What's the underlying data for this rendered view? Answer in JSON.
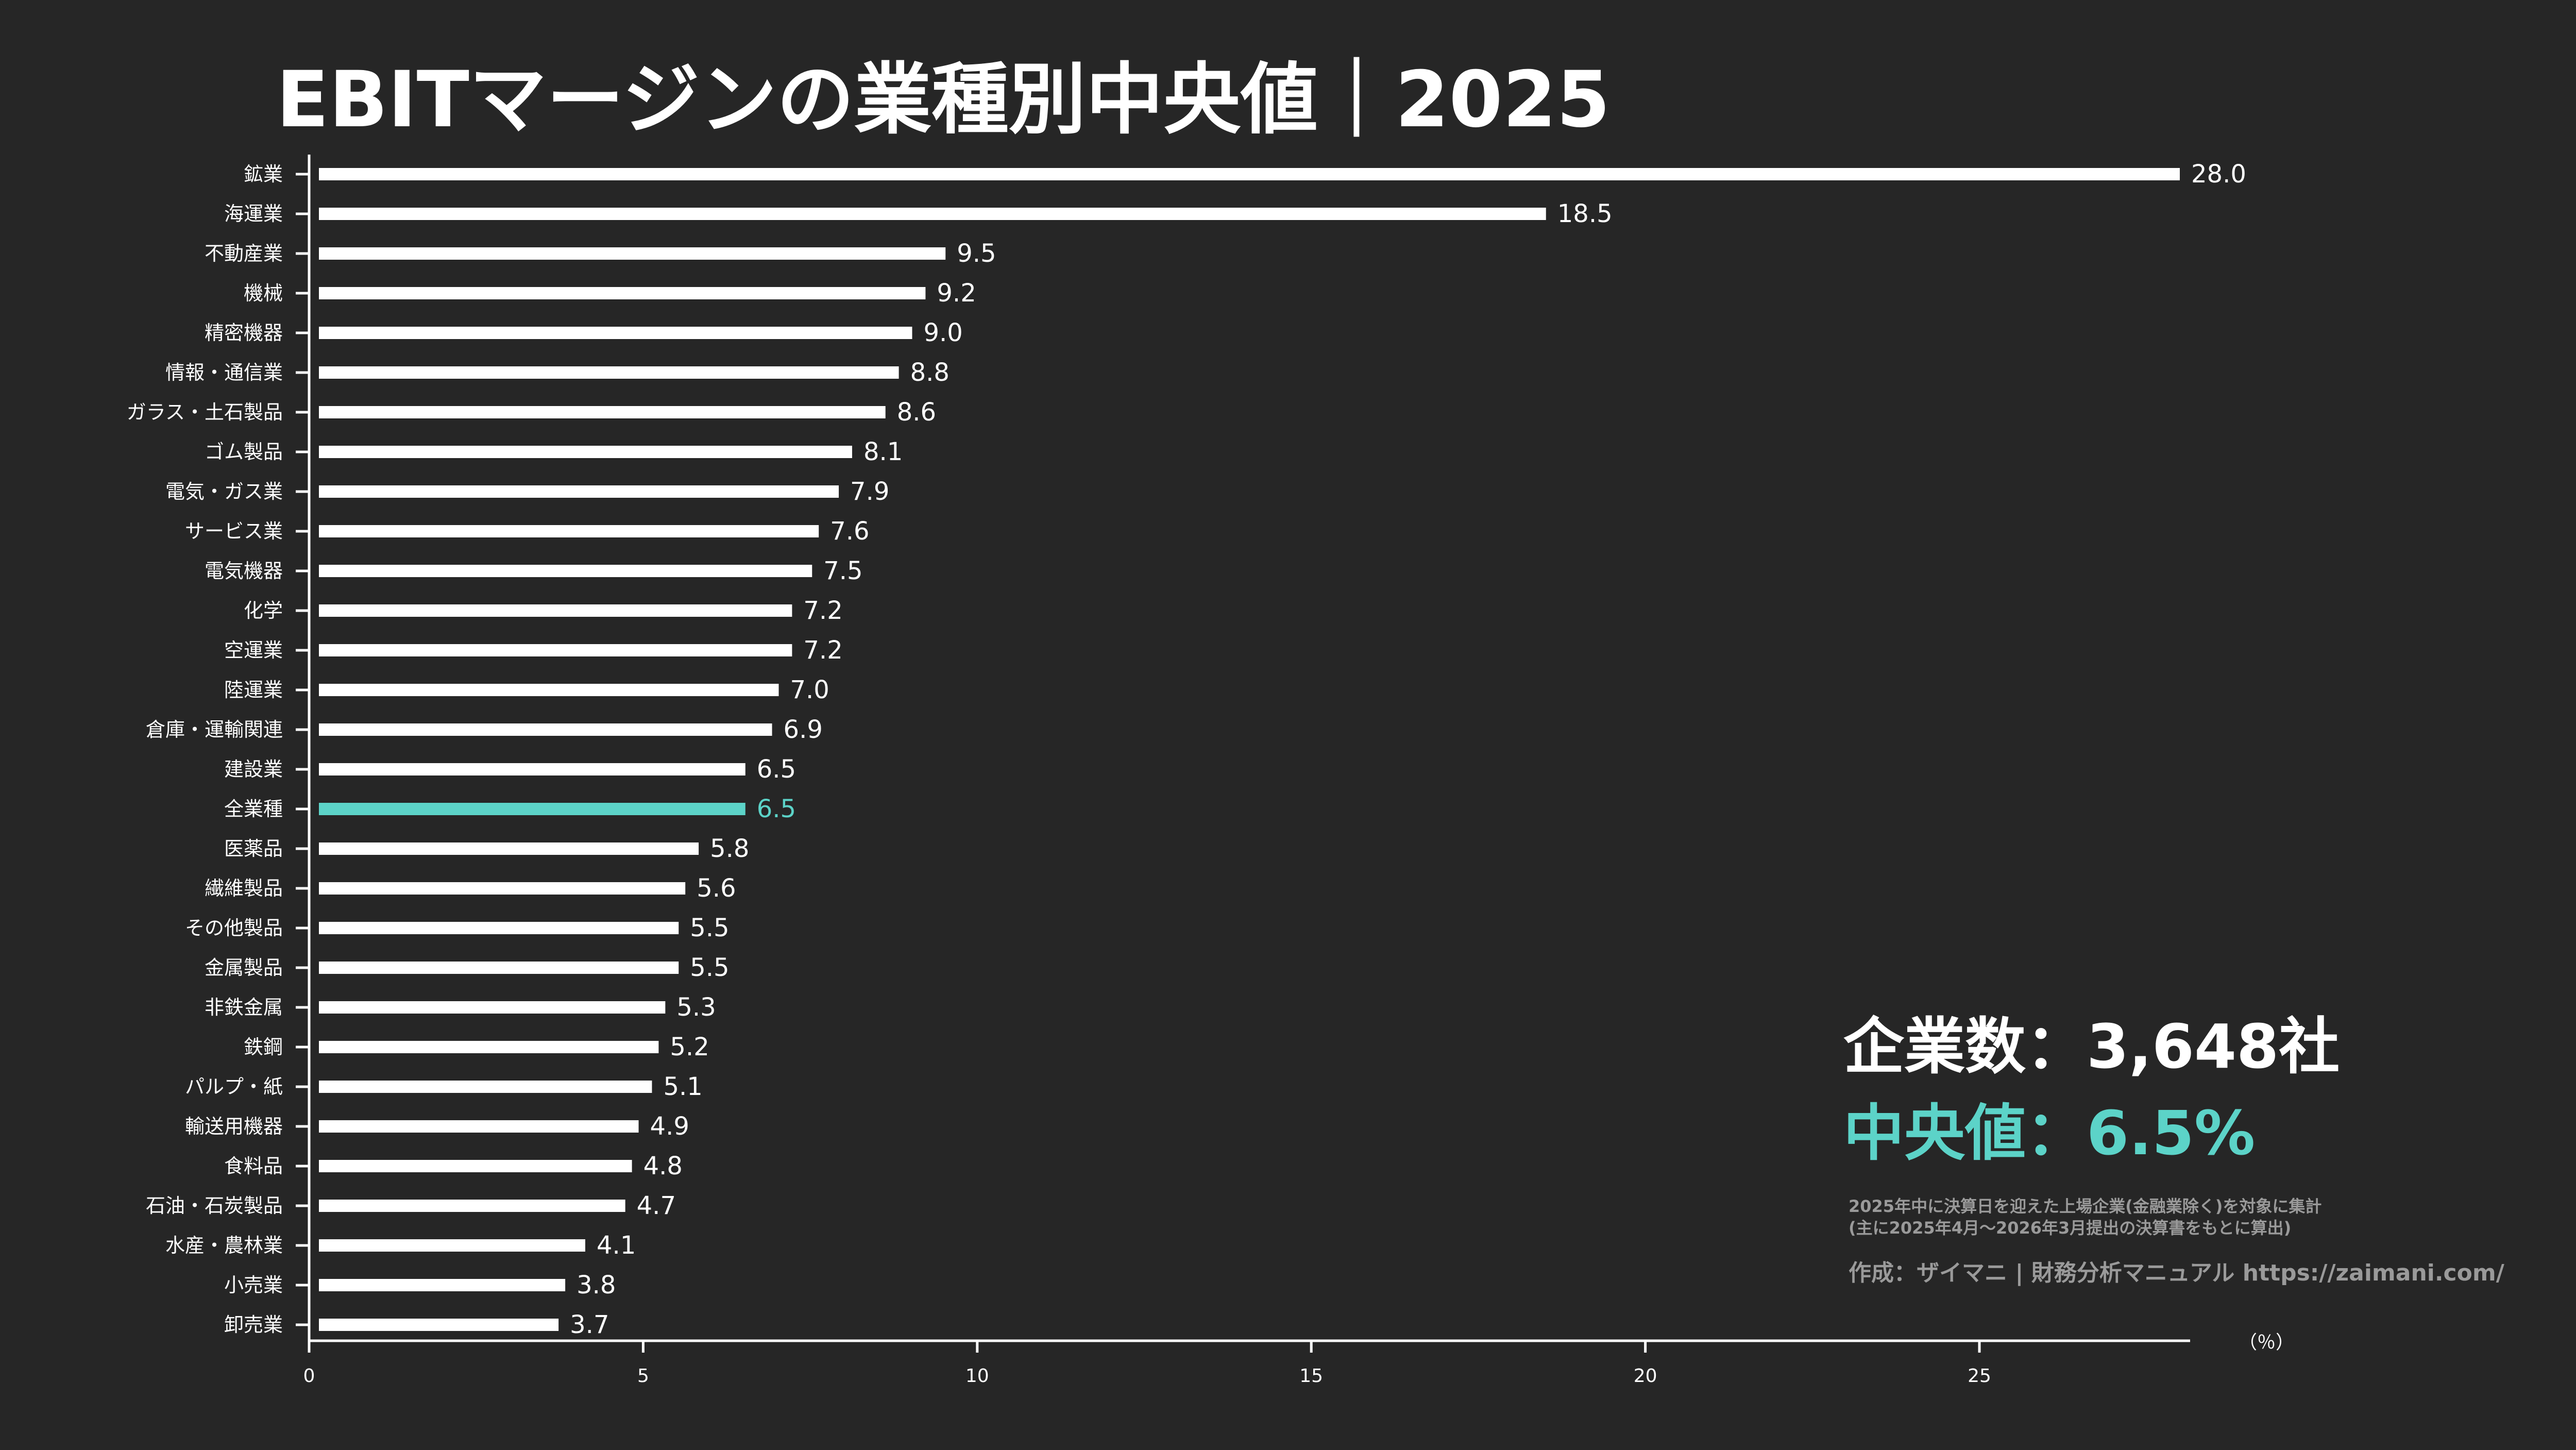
{
  "colors": {
    "background": "#262626",
    "bar": "#ffffff",
    "highlight": "#5cd3c8",
    "note": "#9a9a9a"
  },
  "chart_data": {
    "type": "bar",
    "orientation": "horizontal",
    "title": "EBITマージンの業種別中央値｜2025",
    "xlabel": "（％）",
    "xlim": [
      0,
      28
    ],
    "xticks": [
      0,
      5,
      10,
      15,
      20,
      25
    ],
    "grid": false,
    "highlight_category": "全業種",
    "categories": [
      "鉱業",
      "海運業",
      "不動産業",
      "機械",
      "精密機器",
      "情報・通信業",
      "ガラス・土石製品",
      "ゴム製品",
      "電気・ガス業",
      "サービス業",
      "電気機器",
      "化学",
      "空運業",
      "陸運業",
      "倉庫・運輸関連",
      "建設業",
      "全業種",
      "医薬品",
      "繊維製品",
      "その他製品",
      "金属製品",
      "非鉄金属",
      "鉄鋼",
      "パルプ・紙",
      "輸送用機器",
      "食料品",
      "石油・石炭製品",
      "水産・農林業",
      "小売業",
      "卸売業"
    ],
    "values": [
      28.0,
      18.5,
      9.5,
      9.2,
      9.0,
      8.8,
      8.6,
      8.1,
      7.9,
      7.6,
      7.5,
      7.2,
      7.2,
      7.0,
      6.9,
      6.5,
      6.5,
      5.8,
      5.6,
      5.5,
      5.5,
      5.3,
      5.2,
      5.1,
      4.9,
      4.8,
      4.7,
      4.1,
      3.8,
      3.7
    ]
  },
  "summary": {
    "company_count": "企業数：3,648社",
    "median": "中央値：6.5%"
  },
  "notes": {
    "line1": "2025年中に決算日を迎えた上場企業(金融業除く)を対象に集計",
    "line2": "(主に2025年4月～2026年3月提出の決算書をもとに算出)",
    "credit": "作成：ザイマニ | 財務分析マニュアル https://zaimani.com/"
  }
}
